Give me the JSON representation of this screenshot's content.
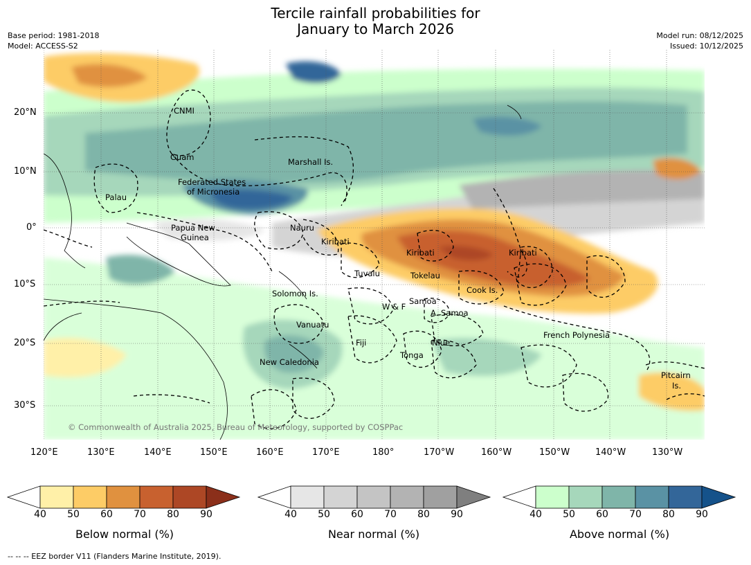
{
  "title_line1": "Tercile rainfall probabilities for",
  "title_line2": "January to March 2026",
  "base_period": "Base period: 1981-2018",
  "model": "Model: ACCESS-S2",
  "model_run": "Model run: 08/12/2025",
  "issued": "Issued: 10/12/2025",
  "copyright": "© Commonwealth of Australia 2025, Bureau of Meteorology, supported by COSPPac",
  "footer": "--  --  -- EEZ border V11 (Flanders Marine Institute, 2019).",
  "lat_labels": [
    "20°N",
    "10°N",
    "0°",
    "10°S",
    "20°S",
    "30°S"
  ],
  "lon_labels": [
    "120°E",
    "130°E",
    "140°E",
    "150°E",
    "160°E",
    "170°E",
    "180°",
    "170°W",
    "160°W",
    "150°W",
    "140°W",
    "130°W"
  ],
  "places": [
    "CNMI",
    "Guam",
    "Marshall Is.",
    "Federated States",
    "of Micronesia",
    "Palau",
    "Papua New",
    "Guinea",
    "Nauru",
    "Kiribati",
    "Kiribati",
    "Kiribati",
    "Tuvalu",
    "Tokelau",
    "Cook Is.",
    "Solomon Is.",
    "Samoa",
    "W & F",
    "A. Samoa",
    "Vanuatu",
    "Fiji",
    "Niue",
    "French Polynesia",
    "Tonga",
    "New Caledonia",
    "Pitcairn",
    "Is."
  ],
  "colorbars": [
    {
      "name": "Below normal (%)",
      "ticks": [
        "40",
        "50",
        "60",
        "70",
        "80",
        "90"
      ],
      "colors": [
        "#ffffff",
        "#fff0a8",
        "#fdcc66",
        "#e0913f",
        "#c8612f",
        "#ad4725",
        "#8b2f1a"
      ]
    },
    {
      "name": "Near normal (%)",
      "ticks": [
        "40",
        "50",
        "60",
        "70",
        "80",
        "90"
      ],
      "colors": [
        "#ffffff",
        "#e6e6e6",
        "#d4d4d4",
        "#c4c4c4",
        "#b3b3b3",
        "#a0a0a0",
        "#7f7f7f"
      ]
    },
    {
      "name": "Above normal (%)",
      "ticks": [
        "40",
        "50",
        "60",
        "70",
        "80",
        "90"
      ],
      "colors": [
        "#ffffff",
        "#ccffcc",
        "#a6d7bb",
        "#7fb5a9",
        "#5a92a4",
        "#336699",
        "#15528a"
      ]
    }
  ]
}
